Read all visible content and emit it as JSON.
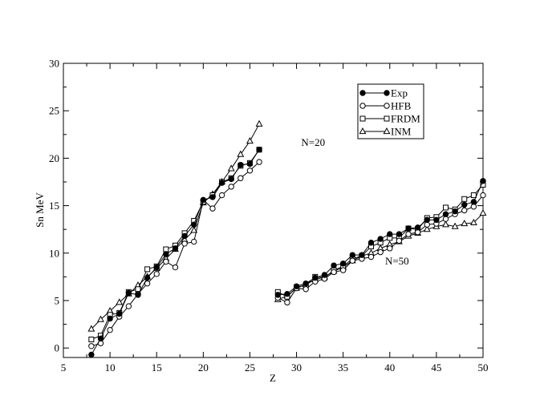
{
  "chart_data": {
    "type": "line",
    "title": "",
    "xlabel": "Z",
    "ylabel": "Sn MeV",
    "xlim": [
      5,
      50
    ],
    "ylim": [
      -1,
      30
    ],
    "xticks": [
      5,
      10,
      15,
      20,
      25,
      30,
      35,
      40,
      45,
      50
    ],
    "yticks": [
      0,
      5,
      10,
      15,
      20,
      25,
      30
    ],
    "grid": false,
    "legend_position": "top-right",
    "annotations": [
      {
        "text": "N=20",
        "x": 30.5,
        "y": 21.3
      },
      {
        "text": "N=50",
        "x": 39.5,
        "y": 8.8
      }
    ],
    "series": [
      {
        "name": "Exp",
        "marker": "filled-circle",
        "groups": [
          {
            "x": [
              8,
              9,
              10,
              11,
              12,
              13,
              14,
              15,
              16,
              17,
              18,
              19,
              20,
              21,
              22,
              23,
              24,
              25,
              26
            ],
            "y": [
              -0.7,
              1.0,
              3.1,
              3.6,
              5.8,
              5.6,
              7.4,
              8.5,
              9.9,
              10.5,
              11.8,
              13.0,
              15.6,
              15.9,
              17.4,
              17.8,
              19.3,
              19.4,
              20.9
            ]
          },
          {
            "x": [
              28,
              29,
              30,
              31,
              32,
              33,
              34,
              35,
              36,
              37,
              38,
              39,
              40,
              41,
              42,
              43,
              44,
              45,
              46,
              47,
              48,
              49,
              50
            ],
            "y": [
              5.6,
              5.7,
              6.5,
              6.8,
              7.4,
              7.7,
              8.7,
              8.9,
              9.8,
              9.8,
              11.1,
              11.5,
              12.0,
              12.0,
              12.6,
              12.7,
              13.5,
              13.5,
              14.1,
              14.4,
              15.1,
              15.4,
              17.6
            ]
          }
        ]
      },
      {
        "name": "HFB",
        "marker": "open-circle",
        "groups": [
          {
            "x": [
              8,
              9,
              10,
              11,
              12,
              13,
              14,
              15,
              16,
              17,
              18,
              19,
              20,
              21,
              22,
              23,
              24,
              25,
              26
            ],
            "y": [
              0.2,
              0.5,
              1.9,
              3.3,
              4.4,
              5.7,
              6.8,
              7.8,
              9.1,
              8.5,
              11.0,
              11.2,
              15.6,
              14.7,
              16.1,
              17.0,
              17.9,
              18.7,
              19.6
            ]
          },
          {
            "x": [
              28,
              29,
              30,
              31,
              32,
              33,
              34,
              35,
              36,
              37,
              38,
              39,
              40,
              41,
              42,
              43,
              44,
              45,
              46,
              47,
              48,
              49,
              50
            ],
            "y": [
              5.3,
              4.8,
              6.3,
              6.2,
              7.0,
              7.3,
              8.0,
              8.2,
              9.2,
              9.4,
              9.6,
              10.1,
              10.5,
              11.3,
              12.0,
              12.2,
              13.0,
              13.1,
              13.6,
              14.1,
              14.5,
              14.9,
              16.1
            ]
          }
        ]
      },
      {
        "name": "FRDM",
        "marker": "open-square",
        "groups": [
          {
            "x": [
              8,
              9,
              10,
              11,
              12,
              13,
              14,
              15,
              16,
              17,
              18,
              19,
              20,
              21,
              22,
              23,
              24,
              25,
              26
            ],
            "y": [
              0.9,
              1.3,
              3.5,
              3.7,
              5.9,
              6.2,
              8.3,
              8.6,
              10.4,
              10.8,
              12.1,
              13.4,
              15.4,
              16.1,
              17.5,
              17.9,
              19.2,
              19.5,
              20.9
            ]
          },
          {
            "x": [
              28,
              29,
              30,
              31,
              32,
              33,
              34,
              35,
              36,
              37,
              38,
              39,
              40,
              41,
              42,
              43,
              44,
              45,
              46,
              47,
              48,
              49,
              50
            ],
            "y": [
              5.9,
              5.4,
              6.4,
              6.6,
              7.5,
              7.4,
              8.2,
              8.6,
              9.4,
              9.7,
              10.7,
              11.1,
              11.6,
              11.6,
              12.6,
              12.5,
              13.7,
              13.8,
              14.8,
              14.6,
              15.7,
              16.1,
              17.2
            ]
          }
        ]
      },
      {
        "name": "INM",
        "marker": "open-triangle",
        "groups": [
          {
            "x": [
              8,
              9,
              10,
              11,
              12,
              13,
              14,
              15,
              16,
              17,
              18,
              19,
              20,
              21,
              22,
              23,
              24,
              25,
              26
            ],
            "y": [
              2.0,
              3.0,
              3.9,
              4.8,
              5.7,
              6.6,
              7.5,
              8.4,
              9.4,
              10.4,
              11.4,
              12.4,
              15.3,
              16.2,
              17.5,
              18.9,
              20.4,
              21.8,
              23.6
            ]
          },
          {
            "x": [
              28,
              29,
              30,
              31,
              32,
              33,
              34,
              35,
              36,
              37,
              38,
              39,
              40,
              41,
              42,
              43,
              44,
              45,
              46,
              47,
              48,
              49,
              50
            ],
            "y": [
              5.1,
              5.5,
              6.3,
              6.7,
              7.2,
              7.5,
              8.1,
              8.5,
              9.2,
              9.7,
              10.0,
              10.5,
              10.9,
              11.2,
              11.8,
              12.1,
              12.5,
              12.8,
              13.0,
              12.8,
              13.1,
              13.2,
              14.2
            ]
          }
        ]
      }
    ]
  }
}
